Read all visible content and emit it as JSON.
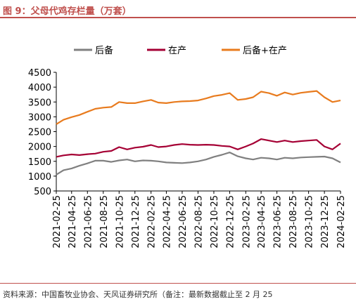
{
  "figure": {
    "title": "图 9：父母代鸡存栏量（万套）",
    "source": "资料来源：中国畜牧业协会、天风证券研究所（备注：最新数据截止至 2 月 25"
  },
  "chart_data": {
    "type": "line",
    "title": "",
    "xlabel": "",
    "ylabel": "",
    "ylim": [
      500,
      4500
    ],
    "yticks": [
      500,
      1000,
      1500,
      2000,
      2500,
      3000,
      3500,
      4000,
      4500
    ],
    "xlim": [
      "2021-02-25",
      "2024-02-25"
    ],
    "xticks": [
      "2021-02-25",
      "2021-04-25",
      "2021-06-25",
      "2021-08-25",
      "2021-10-25",
      "2021-12-25",
      "2022-02-25",
      "2022-04-25",
      "2022-06-25",
      "2022-08-25",
      "2022-10-25",
      "2022-12-25",
      "2023-02-25",
      "2023-04-25",
      "2023-06-25",
      "2023-08-25",
      "2023-10-25",
      "2023-12-25",
      "2024-02-25"
    ],
    "grid": false,
    "legend_position": "top",
    "series": [
      {
        "name": "后备",
        "color": "#808080",
        "x": [
          "2021-02-25",
          "2021-03-25",
          "2021-04-25",
          "2021-05-25",
          "2021-06-25",
          "2021-07-25",
          "2021-08-25",
          "2021-09-25",
          "2021-10-25",
          "2021-11-25",
          "2021-12-25",
          "2022-01-25",
          "2022-02-25",
          "2022-03-25",
          "2022-04-25",
          "2022-05-25",
          "2022-06-25",
          "2022-07-25",
          "2022-08-25",
          "2022-09-25",
          "2022-10-25",
          "2022-11-25",
          "2022-12-25",
          "2023-01-25",
          "2023-02-25",
          "2023-03-25",
          "2023-04-25",
          "2023-05-25",
          "2023-06-25",
          "2023-07-25",
          "2023-08-25",
          "2023-09-25",
          "2023-10-25",
          "2023-11-25",
          "2023-12-25",
          "2024-01-25",
          "2024-02-25"
        ],
        "values": [
          1050,
          1200,
          1260,
          1350,
          1430,
          1520,
          1520,
          1480,
          1530,
          1560,
          1500,
          1530,
          1520,
          1500,
          1460,
          1450,
          1440,
          1460,
          1500,
          1560,
          1650,
          1720,
          1800,
          1670,
          1600,
          1560,
          1620,
          1600,
          1560,
          1620,
          1600,
          1630,
          1640,
          1650,
          1660,
          1600,
          1460
        ]
      },
      {
        "name": "在产",
        "color": "#a50034",
        "x": [
          "2021-02-25",
          "2021-03-25",
          "2021-04-25",
          "2021-05-25",
          "2021-06-25",
          "2021-07-25",
          "2021-08-25",
          "2021-09-25",
          "2021-10-25",
          "2021-11-25",
          "2021-12-25",
          "2022-01-25",
          "2022-02-25",
          "2022-03-25",
          "2022-04-25",
          "2022-05-25",
          "2022-06-25",
          "2022-07-25",
          "2022-08-25",
          "2022-09-25",
          "2022-10-25",
          "2022-11-25",
          "2022-12-25",
          "2023-01-25",
          "2023-02-25",
          "2023-03-25",
          "2023-04-25",
          "2023-05-25",
          "2023-06-25",
          "2023-07-25",
          "2023-08-25",
          "2023-09-25",
          "2023-10-25",
          "2023-11-25",
          "2023-12-25",
          "2024-01-25",
          "2024-02-25"
        ],
        "values": [
          1650,
          1700,
          1730,
          1710,
          1740,
          1760,
          1820,
          1850,
          1980,
          1900,
          1960,
          1990,
          2050,
          1980,
          2000,
          2050,
          2080,
          2060,
          2050,
          2060,
          2050,
          2020,
          2000,
          1900,
          2000,
          2100,
          2250,
          2200,
          2150,
          2200,
          2150,
          2180,
          2200,
          2220,
          2000,
          1900,
          2100
        ]
      },
      {
        "name": "后备+在产",
        "color": "#e87b1e",
        "x": [
          "2021-02-25",
          "2021-03-25",
          "2021-04-25",
          "2021-05-25",
          "2021-06-25",
          "2021-07-25",
          "2021-08-25",
          "2021-09-25",
          "2021-10-25",
          "2021-11-25",
          "2021-12-25",
          "2022-01-25",
          "2022-02-25",
          "2022-03-25",
          "2022-04-25",
          "2022-05-25",
          "2022-06-25",
          "2022-07-25",
          "2022-08-25",
          "2022-09-25",
          "2022-10-25",
          "2022-11-25",
          "2022-12-25",
          "2023-01-25",
          "2023-02-25",
          "2023-03-25",
          "2023-04-25",
          "2023-05-25",
          "2023-06-25",
          "2023-07-25",
          "2023-08-25",
          "2023-09-25",
          "2023-10-25",
          "2023-11-25",
          "2023-12-25",
          "2024-01-25",
          "2024-02-25"
        ],
        "values": [
          2750,
          2900,
          2990,
          3060,
          3170,
          3270,
          3310,
          3330,
          3500,
          3460,
          3460,
          3520,
          3570,
          3480,
          3460,
          3500,
          3520,
          3530,
          3550,
          3620,
          3700,
          3740,
          3800,
          3570,
          3600,
          3660,
          3850,
          3800,
          3710,
          3820,
          3750,
          3810,
          3840,
          3870,
          3660,
          3500,
          3550
        ]
      }
    ]
  }
}
